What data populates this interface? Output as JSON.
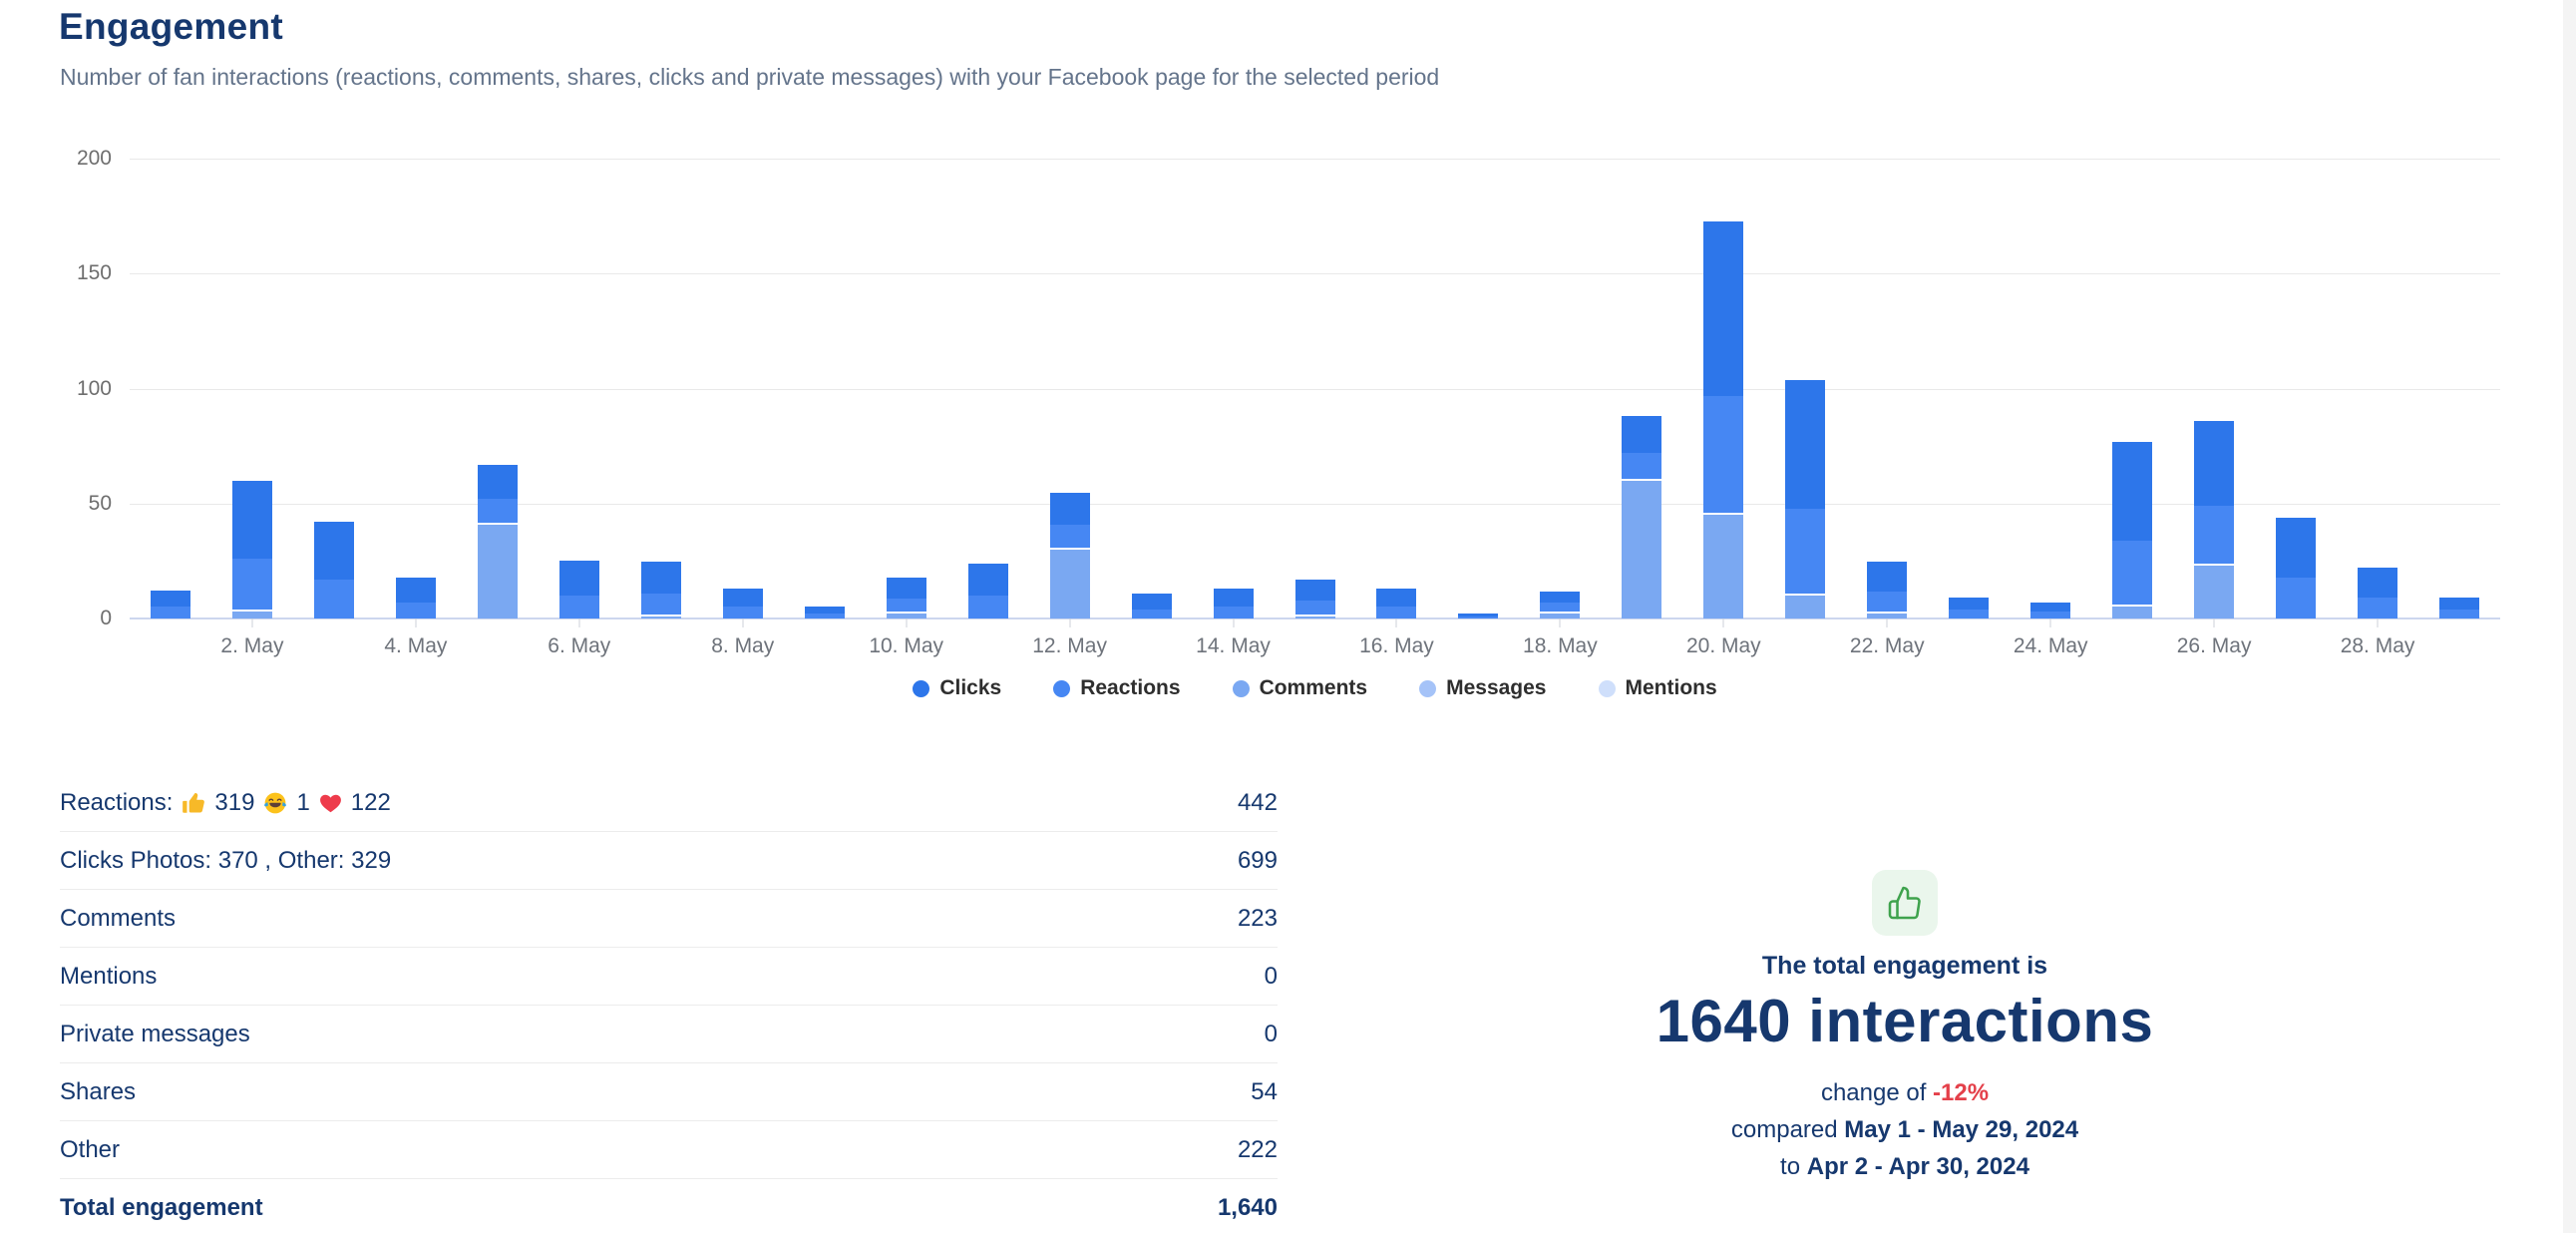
{
  "header": {
    "title": "Engagement",
    "subtitle": "Number of fan interactions (reactions, comments, shares, clicks and private messages) with your Facebook page for the selected period"
  },
  "colors": {
    "navy": "#16386e",
    "subtitle_gray": "#64748b",
    "red": "#e4404a",
    "green": "#3fa34d",
    "green_bg": "#eaf6ec"
  },
  "chart_data": {
    "type": "bar",
    "stacked": true,
    "title": "Engagement",
    "x_unit": "day of May 2024",
    "days": [
      1,
      2,
      3,
      4,
      5,
      6,
      7,
      8,
      9,
      10,
      11,
      12,
      13,
      14,
      15,
      16,
      17,
      18,
      19,
      20,
      21,
      22,
      23,
      24,
      25,
      26,
      27,
      28,
      29
    ],
    "tick_days": [
      2,
      4,
      6,
      8,
      10,
      12,
      14,
      16,
      18,
      20,
      22,
      24,
      26,
      28
    ],
    "tick_labels": [
      "2. May",
      "4. May",
      "6. May",
      "8. May",
      "10. May",
      "12. May",
      "14. May",
      "16. May",
      "18. May",
      "20. May",
      "22. May",
      "24. May",
      "26. May",
      "28. May"
    ],
    "ylim": [
      0,
      200
    ],
    "yticks": [
      0,
      50,
      100,
      150,
      200
    ],
    "grid": true,
    "legend_position": "bottom",
    "stack_bottom_to_top": [
      "Mentions",
      "Messages",
      "Comments",
      "Reactions",
      "Clicks"
    ],
    "series": [
      {
        "name": "Clicks",
        "color": "#2d76ea",
        "values": [
          7,
          34,
          25,
          11,
          15,
          15,
          14,
          8,
          3,
          9,
          14,
          14,
          7,
          8,
          9,
          8,
          1,
          5,
          16,
          76,
          56,
          13,
          5,
          4,
          43,
          37,
          26,
          13,
          5
        ]
      },
      {
        "name": "Reactions",
        "color": "#4687f3",
        "values": [
          5,
          22,
          17,
          7,
          10,
          10,
          9,
          5,
          2,
          6,
          10,
          10,
          4,
          5,
          6,
          5,
          1,
          4,
          11,
          51,
          37,
          9,
          4,
          3,
          28,
          25,
          18,
          9,
          4
        ]
      },
      {
        "name": "Comments",
        "color": "#7aa8f2",
        "values": [
          0,
          3,
          0,
          0,
          41,
          0,
          1,
          0,
          0,
          2,
          0,
          30,
          0,
          0,
          1,
          0,
          0,
          2,
          60,
          45,
          10,
          2,
          0,
          0,
          5,
          23,
          0,
          0,
          0
        ]
      },
      {
        "name": "Messages",
        "color": "#a5c3f8",
        "values": [
          0,
          0,
          0,
          0,
          0,
          0,
          0,
          0,
          0,
          0,
          0,
          0,
          0,
          0,
          0,
          0,
          0,
          0,
          0,
          0,
          0,
          0,
          0,
          0,
          0,
          0,
          0,
          0,
          0
        ]
      },
      {
        "name": "Mentions",
        "color": "#cfdffb",
        "values": [
          0,
          0,
          0,
          0,
          0,
          0,
          0,
          0,
          0,
          0,
          0,
          0,
          0,
          0,
          0,
          0,
          0,
          0,
          0,
          0,
          0,
          0,
          0,
          0,
          0,
          0,
          0,
          0,
          0
        ]
      }
    ],
    "daily_totals_estimated": [
      12,
      59,
      42,
      18,
      66,
      25,
      24,
      13,
      5,
      17,
      24,
      54,
      11,
      13,
      16,
      13,
      2,
      11,
      87,
      172,
      103,
      24,
      9,
      7,
      76,
      85,
      44,
      22,
      9
    ]
  },
  "table": {
    "rows": [
      {
        "label_parts": [
          {
            "type": "text",
            "text": "Reactions:"
          },
          {
            "type": "icon",
            "icon": "thumbs-up-emoji"
          },
          {
            "type": "text",
            "text": "319"
          },
          {
            "type": "icon",
            "icon": "laughing-emoji"
          },
          {
            "type": "text",
            "text": "1"
          },
          {
            "type": "icon",
            "icon": "red-heart-emoji"
          },
          {
            "type": "text",
            "text": "122"
          }
        ],
        "value": "442",
        "bold": false
      },
      {
        "label_parts": [
          {
            "type": "text",
            "text": "Clicks Photos: 370 , Other: 329"
          }
        ],
        "value": "699",
        "bold": false
      },
      {
        "label_parts": [
          {
            "type": "text",
            "text": "Comments"
          }
        ],
        "value": "223",
        "bold": false
      },
      {
        "label_parts": [
          {
            "type": "text",
            "text": "Mentions"
          }
        ],
        "value": "0",
        "bold": false
      },
      {
        "label_parts": [
          {
            "type": "text",
            "text": "Private messages"
          }
        ],
        "value": "0",
        "bold": false
      },
      {
        "label_parts": [
          {
            "type": "text",
            "text": "Shares"
          }
        ],
        "value": "54",
        "bold": false
      },
      {
        "label_parts": [
          {
            "type": "text",
            "text": "Other"
          }
        ],
        "value": "222",
        "bold": false
      },
      {
        "label_parts": [
          {
            "type": "text",
            "text": "Total engagement"
          }
        ],
        "value": "1,640",
        "bold": true
      }
    ]
  },
  "summary": {
    "icon": "thumbs-up-icon",
    "caption": "The total engagement is",
    "headline": "1640 interactions",
    "change_prefix": "change of",
    "change_value": "-12%",
    "compare_prefix": "compared",
    "compare_range": "May 1 - May 29, 2024",
    "to_prefix": "to",
    "to_range": "Apr 2 - Apr 30, 2024"
  }
}
